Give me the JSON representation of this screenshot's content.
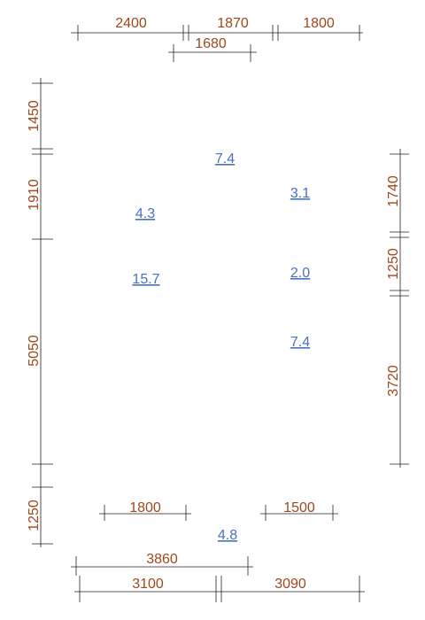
{
  "colors": {
    "dimension": "#a0461c",
    "area": "#4a6fc0",
    "line": "#222222"
  },
  "top_dimensions": {
    "d1": "2400",
    "d2": "1870",
    "d3": "1800",
    "d4": "1680"
  },
  "left_dimensions": {
    "d1": "1450",
    "d2": "1910",
    "d3": "5050",
    "d4": "1250"
  },
  "right_dimensions": {
    "d1": "1740",
    "d2": "1250",
    "d3": "3720"
  },
  "inner_dimensions": {
    "d1": "1800",
    "d2": "1500"
  },
  "bottom_dimensions": {
    "d1": "3860",
    "d2": "3100",
    "d3": "3090"
  },
  "areas": {
    "a1": "7.4",
    "a2": "3.1",
    "a3": "4.3",
    "a4": "15.7",
    "a5": "2.0",
    "a6": "7.4",
    "a7": "4.8"
  }
}
